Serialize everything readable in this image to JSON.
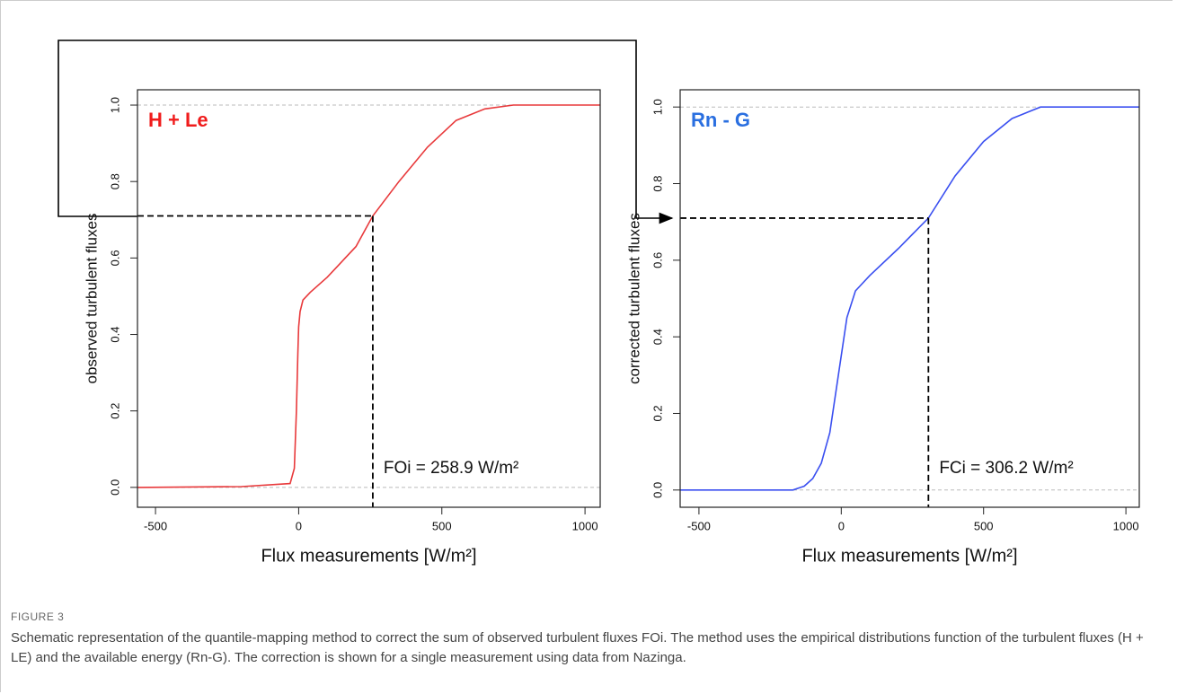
{
  "chart_data": [
    {
      "type": "line",
      "label": "H + Le",
      "label_color": "#f01c1c",
      "color": "#e8393b",
      "x": [
        -563,
        -200,
        -30,
        -15,
        -8,
        -3,
        0,
        5,
        15,
        40,
        100,
        200,
        258.9,
        350,
        450,
        550,
        650,
        750,
        1053
      ],
      "values": [
        0,
        0.002,
        0.01,
        0.05,
        0.2,
        0.35,
        0.42,
        0.46,
        0.49,
        0.51,
        0.55,
        0.63,
        0.71,
        0.8,
        0.89,
        0.96,
        0.99,
        1.0,
        1.0
      ],
      "xlim": [
        -563,
        1053
      ],
      "ylim": [
        -0.052,
        1.04
      ],
      "xticks": [
        -500,
        0,
        500,
        1000
      ],
      "yticks": [
        {
          "value": 0,
          "label": "0.0"
        },
        0.2,
        0.4,
        0.6,
        0.8,
        {
          "value": 1,
          "label": "1.0"
        }
      ],
      "reference_lines": [
        0,
        1
      ],
      "xlabel": "Flux measurements [W/m²]",
      "ylabel": "observed turbulent fluxes",
      "marker": {
        "x": 258.9,
        "y": 0.71
      },
      "annotation": "FOi = 258.9 W/m²"
    },
    {
      "type": "line",
      "label": "Rn - G",
      "label_color": "#2a6fe0",
      "color": "#3a4ff0",
      "x": [
        -566,
        -170,
        -130,
        -100,
        -70,
        -40,
        -10,
        20,
        50,
        100,
        200,
        306.2,
        400,
        500,
        600,
        700,
        1047
      ],
      "values": [
        0,
        0,
        0.01,
        0.03,
        0.07,
        0.15,
        0.3,
        0.45,
        0.52,
        0.56,
        0.63,
        0.71,
        0.82,
        0.91,
        0.97,
        1.0,
        1.0
      ],
      "xlim": [
        -566,
        1047
      ],
      "ylim": [
        -0.045,
        1.045
      ],
      "xticks": [
        -500,
        0,
        500,
        1000
      ],
      "yticks": [
        {
          "value": 0,
          "label": "0.0"
        },
        0.2,
        0.4,
        0.6,
        0.8,
        {
          "value": 1,
          "label": "1.0"
        }
      ],
      "reference_lines": [
        0,
        1
      ],
      "xlabel": "Flux measurements [W/m²]",
      "ylabel": "corrected turbulent fluxes",
      "marker": {
        "x": 306.2,
        "y": 0.71
      },
      "annotation": "FCi = 306.2 W/m²"
    }
  ],
  "figure": {
    "label": "FIGURE 3",
    "caption": "Schematic representation of the quantile-mapping method to correct the sum of observed turbulent fluxes FOi. The method uses the empirical distributions function of the turbulent fluxes (H + LE) and the available energy (Rn-G). The correction is shown for a single measurement using data from Nazinga."
  }
}
